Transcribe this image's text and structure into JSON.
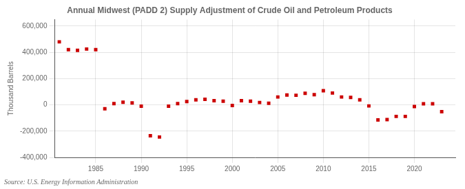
{
  "chart_data": {
    "type": "scatter",
    "title": "Annual Midwest (PADD 2) Supply Adjustment of Crude Oil and Petroleum Products",
    "ylabel": "Thousand Barrels",
    "source": "Source: U.S. Energy Information Administration",
    "x": [
      1981,
      1982,
      1983,
      1984,
      1985,
      1986,
      1987,
      1988,
      1989,
      1990,
      1991,
      1992,
      1993,
      1994,
      1995,
      1996,
      1997,
      1998,
      1999,
      2000,
      2001,
      2002,
      2003,
      2004,
      2005,
      2006,
      2007,
      2008,
      2009,
      2010,
      2011,
      2012,
      2013,
      2014,
      2015,
      2016,
      2017,
      2018,
      2019,
      2020,
      2021,
      2022,
      2023
    ],
    "values": [
      480000,
      420000,
      415000,
      425000,
      420000,
      -30000,
      10000,
      20000,
      15000,
      -10000,
      -235000,
      -245000,
      -10000,
      10000,
      25000,
      38000,
      42000,
      32000,
      28000,
      -5000,
      32000,
      28000,
      18000,
      12000,
      60000,
      75000,
      73000,
      88000,
      78000,
      108000,
      90000,
      60000,
      57000,
      38000,
      -8000,
      -115000,
      -112000,
      -88000,
      -88000,
      -13000,
      8000,
      8000,
      -52000
    ],
    "color": "#cc0000",
    "marker": "square",
    "xlim": [
      1980.5,
      2024.5
    ],
    "xticks": [
      1985,
      1990,
      1995,
      2000,
      2005,
      2010,
      2015,
      2020
    ],
    "ylim": [
      -400000,
      650000
    ],
    "yticks": [
      {
        "value": -400000,
        "label": "-400,000"
      },
      {
        "value": -200000,
        "label": "-200,000"
      },
      0,
      {
        "value": 200000,
        "label": "200,000"
      },
      {
        "value": 400000,
        "label": "400,000"
      },
      {
        "value": 600000,
        "label": "600,000"
      }
    ],
    "grid": true
  }
}
